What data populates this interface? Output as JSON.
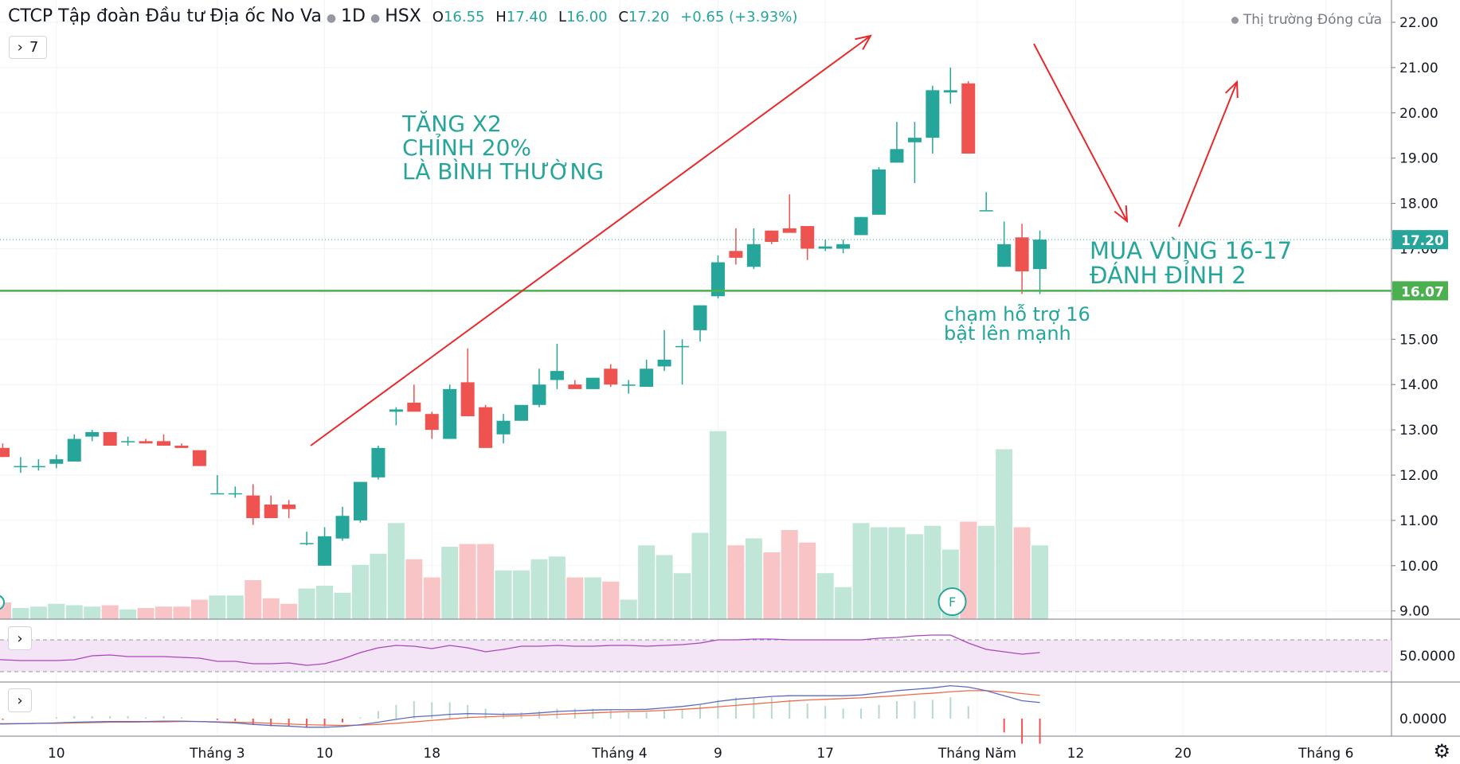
{
  "header": {
    "symbol_name": "CTCP Tập đoàn Đầu tư Địa ốc No Va",
    "interval": "1D",
    "exchange": "HSX",
    "open_label": "O",
    "open": "16.55",
    "high_label": "H",
    "high": "17.40",
    "low_label": "L",
    "low": "16.00",
    "close_label": "C",
    "close": "17.20",
    "change": "+0.65 (+3.93%)"
  },
  "collapse_button": {
    "chevron": "›",
    "count": "7"
  },
  "market_status": "Thị trường Đóng cửa",
  "annotations": {
    "left_text": [
      "TĂNG X2",
      "CHỈNH 20%",
      "LÀ BÌNH THƯỜNG"
    ],
    "right_text": [
      "MUA VÙNG 16-17",
      "ĐÁNH ĐỈNH 2"
    ],
    "support_text": [
      "chạm hỗ trợ 16",
      "bật lên mạnh"
    ],
    "earnings_marker": "F"
  },
  "colors": {
    "up": "#26a69a",
    "down": "#ef5350",
    "vol_up": "#bfe6d7",
    "vol_down": "#f9c4c6",
    "support_line": "#4caf50",
    "annotation_text": "#26a69a",
    "arrow": "#e8282b",
    "rsi_line": "#ab47bc",
    "rsi_band": "#f3e5f5",
    "macd_line": "#5c6bc0",
    "signal_line": "#ef6c4a"
  },
  "chart_data": {
    "type": "candlestick",
    "price_axis": {
      "ticks": [
        "22.00",
        "21.00",
        "20.00",
        "19.00",
        "18.00",
        "17.00",
        "16.00",
        "15.00",
        "14.00",
        "13.00",
        "12.00",
        "11.00",
        "10.00",
        "9.00"
      ],
      "current_price_label": "17.20",
      "support_label": "16.07",
      "support_value": 16.07,
      "current_value": 17.2
    },
    "x_axis": {
      "ticks": [
        {
          "label": "10",
          "index": 4
        },
        {
          "label": "Tháng 3",
          "index": 13
        },
        {
          "label": "10",
          "index": 19
        },
        {
          "label": "18",
          "index": 25
        },
        {
          "label": "Tháng 4",
          "index": 35.5
        },
        {
          "label": "9",
          "index": 41
        },
        {
          "label": "17",
          "index": 47
        },
        {
          "label": "Tháng Năm",
          "index": 55.5
        },
        {
          "label": "12",
          "index": 61
        },
        {
          "label": "20",
          "index": 67
        },
        {
          "label": "Tháng 6",
          "index": 75
        }
      ]
    },
    "candles": [
      {
        "o": 12.85,
        "h": 12.95,
        "l": 12.6,
        "c": 12.6
      },
      {
        "o": 12.6,
        "h": 12.7,
        "l": 12.4,
        "c": 12.4
      },
      {
        "o": 12.2,
        "h": 12.4,
        "l": 12.05,
        "c": 12.2
      },
      {
        "o": 12.2,
        "h": 12.35,
        "l": 12.1,
        "c": 12.2
      },
      {
        "o": 12.25,
        "h": 12.45,
        "l": 12.15,
        "c": 12.35
      },
      {
        "o": 12.3,
        "h": 12.9,
        "l": 12.3,
        "c": 12.8
      },
      {
        "o": 12.85,
        "h": 13.0,
        "l": 12.75,
        "c": 12.95
      },
      {
        "o": 12.95,
        "h": 12.95,
        "l": 12.7,
        "c": 12.65
      },
      {
        "o": 12.75,
        "h": 12.85,
        "l": 12.65,
        "c": 12.75
      },
      {
        "o": 12.75,
        "h": 12.8,
        "l": 12.7,
        "c": 12.7
      },
      {
        "o": 12.75,
        "h": 12.9,
        "l": 12.7,
        "c": 12.65
      },
      {
        "o": 12.65,
        "h": 12.7,
        "l": 12.6,
        "c": 12.6
      },
      {
        "o": 12.55,
        "h": 12.55,
        "l": 12.2,
        "c": 12.2
      },
      {
        "o": 11.6,
        "h": 12.0,
        "l": 11.6,
        "c": 11.6
      },
      {
        "o": 11.6,
        "h": 11.75,
        "l": 11.5,
        "c": 11.6
      },
      {
        "o": 11.55,
        "h": 11.8,
        "l": 10.9,
        "c": 11.05
      },
      {
        "o": 11.35,
        "h": 11.55,
        "l": 11.05,
        "c": 11.05
      },
      {
        "o": 11.35,
        "h": 11.45,
        "l": 11.05,
        "c": 11.25
      },
      {
        "o": 10.5,
        "h": 10.75,
        "l": 10.45,
        "c": 10.5
      },
      {
        "o": 10.0,
        "h": 10.85,
        "l": 10.0,
        "c": 10.65
      },
      {
        "o": 10.6,
        "h": 11.3,
        "l": 10.55,
        "c": 11.1
      },
      {
        "o": 11.0,
        "h": 11.85,
        "l": 10.95,
        "c": 11.85
      },
      {
        "o": 11.95,
        "h": 12.65,
        "l": 11.9,
        "c": 12.6
      },
      {
        "o": 13.4,
        "h": 13.5,
        "l": 13.1,
        "c": 13.45
      },
      {
        "o": 13.6,
        "h": 14.0,
        "l": 13.4,
        "c": 13.4
      },
      {
        "o": 13.35,
        "h": 13.4,
        "l": 12.8,
        "c": 13.0
      },
      {
        "o": 12.8,
        "h": 14.0,
        "l": 12.8,
        "c": 13.9
      },
      {
        "o": 14.05,
        "h": 14.8,
        "l": 13.3,
        "c": 13.3
      },
      {
        "o": 13.5,
        "h": 13.55,
        "l": 12.6,
        "c": 12.6
      },
      {
        "o": 12.9,
        "h": 13.35,
        "l": 12.7,
        "c": 13.2
      },
      {
        "o": 13.2,
        "h": 13.5,
        "l": 13.2,
        "c": 13.55
      },
      {
        "o": 13.55,
        "h": 14.35,
        "l": 13.5,
        "c": 14.0
      },
      {
        "o": 14.1,
        "h": 14.9,
        "l": 13.9,
        "c": 14.3
      },
      {
        "o": 14.0,
        "h": 14.1,
        "l": 13.9,
        "c": 13.9
      },
      {
        "o": 13.9,
        "h": 14.15,
        "l": 13.9,
        "c": 14.15
      },
      {
        "o": 14.35,
        "h": 14.45,
        "l": 13.95,
        "c": 14.0
      },
      {
        "o": 14.0,
        "h": 14.1,
        "l": 13.8,
        "c": 14.0
      },
      {
        "o": 13.95,
        "h": 14.55,
        "l": 13.95,
        "c": 14.35
      },
      {
        "o": 14.4,
        "h": 15.2,
        "l": 14.3,
        "c": 14.55
      },
      {
        "o": 14.85,
        "h": 15.0,
        "l": 14.0,
        "c": 14.85
      },
      {
        "o": 15.2,
        "h": 15.75,
        "l": 14.95,
        "c": 15.75
      },
      {
        "o": 15.95,
        "h": 16.85,
        "l": 15.9,
        "c": 16.7
      },
      {
        "o": 16.95,
        "h": 17.45,
        "l": 16.65,
        "c": 16.8
      },
      {
        "o": 16.6,
        "h": 17.45,
        "l": 16.55,
        "c": 17.1
      },
      {
        "o": 17.4,
        "h": 17.4,
        "l": 17.1,
        "c": 17.15
      },
      {
        "o": 17.45,
        "h": 18.2,
        "l": 17.35,
        "c": 17.35
      },
      {
        "o": 17.5,
        "h": 17.5,
        "l": 16.75,
        "c": 17.0
      },
      {
        "o": 17.0,
        "h": 17.2,
        "l": 16.95,
        "c": 17.05
      },
      {
        "o": 17.0,
        "h": 17.2,
        "l": 16.9,
        "c": 17.1
      },
      {
        "o": 17.3,
        "h": 17.7,
        "l": 17.3,
        "c": 17.7
      },
      {
        "o": 17.75,
        "h": 18.8,
        "l": 17.75,
        "c": 18.75
      },
      {
        "o": 18.9,
        "h": 19.8,
        "l": 18.9,
        "c": 19.2
      },
      {
        "o": 19.35,
        "h": 19.8,
        "l": 18.45,
        "c": 19.45
      },
      {
        "o": 19.45,
        "h": 20.6,
        "l": 19.1,
        "c": 20.5
      },
      {
        "o": 20.45,
        "h": 21.0,
        "l": 20.2,
        "c": 20.5
      },
      {
        "o": 20.65,
        "h": 20.7,
        "l": 19.1,
        "c": 19.1
      },
      {
        "o": 17.85,
        "h": 18.25,
        "l": 17.85,
        "c": 17.85
      },
      {
        "o": 16.6,
        "h": 17.6,
        "l": 16.6,
        "c": 17.1
      },
      {
        "o": 17.25,
        "h": 17.55,
        "l": 16.0,
        "c": 16.5
      },
      {
        "o": 16.55,
        "h": 17.4,
        "l": 16.0,
        "c": 17.2
      }
    ],
    "volume": [
      0.3,
      0.6,
      0.4,
      0.45,
      0.55,
      0.5,
      0.45,
      0.5,
      0.35,
      0.4,
      0.45,
      0.45,
      0.7,
      0.85,
      0.85,
      1.4,
      0.75,
      0.55,
      1.1,
      1.2,
      0.95,
      1.95,
      2.35,
      3.45,
      2.15,
      1.5,
      2.6,
      2.7,
      2.7,
      1.75,
      1.75,
      2.15,
      2.25,
      1.5,
      1.5,
      1.35,
      0.7,
      2.65,
      2.3,
      1.65,
      3.1,
      6.75,
      2.65,
      2.9,
      2.4,
      3.2,
      2.75,
      1.65,
      1.15,
      3.45,
      3.3,
      3.3,
      3.05,
      3.35,
      2.5,
      3.5,
      3.35,
      6.1,
      3.3,
      2.65
    ],
    "rsi": {
      "ticks": [
        "50.0000"
      ],
      "upper": 70,
      "lower": 30,
      "values": [
        46,
        45,
        44,
        44,
        44,
        45,
        50,
        51,
        49,
        49,
        49,
        48,
        47,
        43,
        43,
        40,
        40,
        41,
        38,
        40,
        46,
        54,
        60,
        63,
        62,
        59,
        63,
        60,
        55,
        58,
        62,
        62,
        63,
        62,
        62,
        63,
        63,
        62,
        63,
        64,
        66,
        70,
        70,
        71,
        71,
        70,
        70,
        70,
        70,
        70,
        72,
        73,
        75,
        76,
        76,
        66,
        58,
        55,
        52,
        54
      ]
    },
    "macd": {
      "ticks": [
        "0.0000"
      ],
      "macd_values": [
        -0.15,
        -0.15,
        -0.14,
        -0.13,
        -0.12,
        -0.1,
        -0.09,
        -0.08,
        -0.08,
        -0.08,
        -0.07,
        -0.07,
        -0.08,
        -0.1,
        -0.12,
        -0.16,
        -0.19,
        -0.21,
        -0.24,
        -0.24,
        -0.22,
        -0.17,
        -0.1,
        -0.02,
        0.05,
        0.08,
        0.12,
        0.14,
        0.13,
        0.12,
        0.13,
        0.16,
        0.2,
        0.22,
        0.24,
        0.25,
        0.25,
        0.26,
        0.3,
        0.34,
        0.4,
        0.48,
        0.54,
        0.58,
        0.62,
        0.64,
        0.64,
        0.64,
        0.64,
        0.66,
        0.72,
        0.78,
        0.82,
        0.86,
        0.92,
        0.88,
        0.78,
        0.64,
        0.5,
        0.45
      ],
      "signal_values": [
        -0.14,
        -0.14,
        -0.14,
        -0.13,
        -0.13,
        -0.12,
        -0.11,
        -0.1,
        -0.1,
        -0.09,
        -0.09,
        -0.08,
        -0.08,
        -0.09,
        -0.1,
        -0.11,
        -0.13,
        -0.15,
        -0.17,
        -0.18,
        -0.19,
        -0.18,
        -0.16,
        -0.13,
        -0.09,
        -0.05,
        -0.01,
        0.03,
        0.05,
        0.07,
        0.08,
        0.1,
        0.12,
        0.14,
        0.16,
        0.18,
        0.2,
        0.21,
        0.23,
        0.26,
        0.29,
        0.33,
        0.37,
        0.41,
        0.45,
        0.49,
        0.52,
        0.54,
        0.56,
        0.58,
        0.61,
        0.64,
        0.68,
        0.71,
        0.75,
        0.78,
        0.78,
        0.75,
        0.7,
        0.65
      ]
    }
  }
}
